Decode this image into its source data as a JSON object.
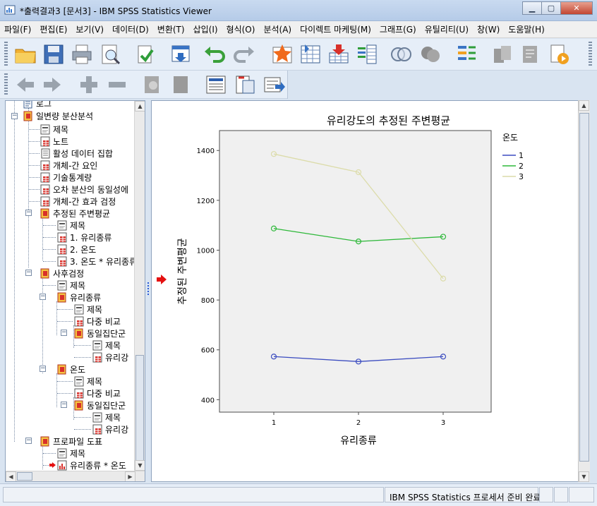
{
  "window": {
    "title": "*출력결과3 [문서3] - IBM SPSS Statistics Viewer"
  },
  "menu": [
    "파일(F)",
    "편집(E)",
    "보기(V)",
    "데이터(D)",
    "변환(T)",
    "삽입(I)",
    "형식(O)",
    "분석(A)",
    "다이렉트 마케팅(M)",
    "그래프(G)",
    "유틸리티(U)",
    "창(W)",
    "도움말(H)"
  ],
  "tree": {
    "log": "로그",
    "anova": "일변량 분산분석",
    "anova_children": [
      "제목",
      "노트",
      "활성 데이터 집합",
      "개체-간 요인",
      "기술통계량",
      "오차 분산의 동일성에",
      "개체-간 효과 검정"
    ],
    "emm": "추정된 주변평균",
    "emm_children": [
      "제목",
      "1. 유리종류",
      "2. 온도",
      "3. 온도 * 유리종류"
    ],
    "posthoc": "사후검정",
    "posthoc_title": "제목",
    "glass": "유리종류",
    "glass_children": [
      "제목",
      "다중 비교"
    ],
    "glass_homog": "동일집단군",
    "glass_homog_children": [
      "제목",
      "유리강"
    ],
    "temp": "온도",
    "temp_children": [
      "제목",
      "다중 비교"
    ],
    "temp_homog": "동일집단군",
    "temp_homog_children": [
      "제목",
      "유리강"
    ],
    "profile": "프로파일 도표",
    "profile_children": [
      "제목",
      "유리종류 * 온도"
    ]
  },
  "status": {
    "text": "IBM SPSS Statistics 프로세서 준비 완료"
  },
  "chart_data": {
    "type": "line",
    "title": "유리강도의 추정된 주변평균",
    "xlabel": "유리종류",
    "ylabel": "추정된 주변평균",
    "categories": [
      "1",
      "2",
      "3"
    ],
    "ylim": [
      350,
      1480
    ],
    "yticks": [
      400,
      600,
      800,
      1000,
      1200,
      1400
    ],
    "legend_title": "온도",
    "legend_position": "right",
    "grid": false,
    "series": [
      {
        "name": "1",
        "color": "#3b4cc0",
        "values": [
          573,
          553,
          573
        ]
      },
      {
        "name": "2",
        "color": "#2eb83a",
        "values": [
          1087,
          1035,
          1054
        ]
      },
      {
        "name": "3",
        "color": "#dcdcaa",
        "values": [
          1386,
          1313,
          886
        ]
      }
    ]
  }
}
